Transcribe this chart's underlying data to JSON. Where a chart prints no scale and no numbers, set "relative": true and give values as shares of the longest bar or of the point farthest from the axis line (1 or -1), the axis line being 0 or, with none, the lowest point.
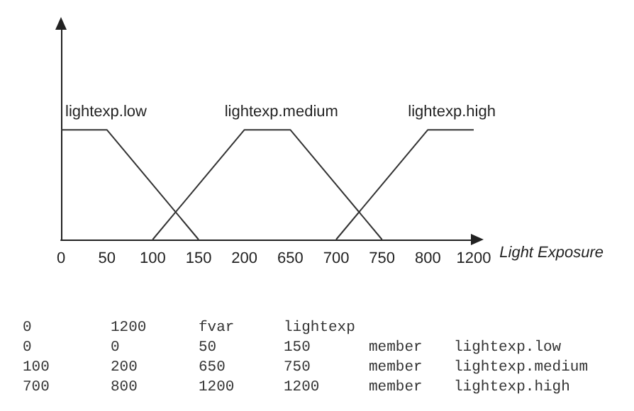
{
  "chart_data": {
    "type": "line",
    "xlabel": "Light Exposure",
    "categories": [
      "0",
      "50",
      "100",
      "150",
      "200",
      "650",
      "700",
      "750",
      "800",
      "1200"
    ],
    "relative": true,
    "legend": false,
    "grid": false,
    "marker": "none",
    "series": [
      {
        "name": "lightexp.low",
        "color": "#333333",
        "values": [
          1,
          1,
          null,
          0,
          null,
          null,
          null,
          null,
          null,
          null
        ]
      },
      {
        "name": "lightexp.medium",
        "color": "#333333",
        "values": [
          null,
          null,
          0,
          null,
          1,
          1,
          null,
          0,
          null,
          null
        ]
      },
      {
        "name": "lightexp.high",
        "color": "#333333",
        "values": [
          null,
          null,
          null,
          null,
          null,
          null,
          0,
          null,
          1,
          1
        ]
      }
    ],
    "annotations": [
      "0 1200 fvar lightexp",
      "0 0 50 150 member lightexp.low",
      "100 200 650 750 member lightexp.medium",
      "700 800 1200 1200 member lightexp.high"
    ]
  }
}
